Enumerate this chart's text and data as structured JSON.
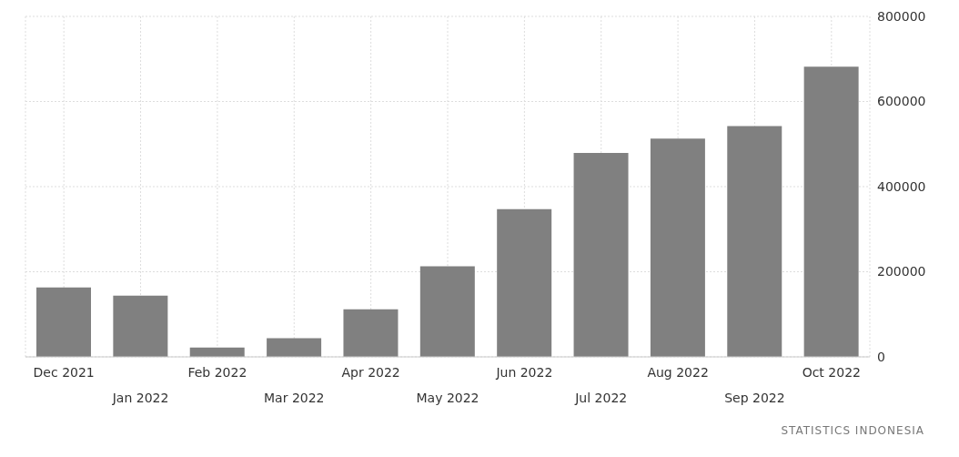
{
  "chart_data": {
    "type": "bar",
    "categories": [
      "Dec 2021",
      "Jan 2022",
      "Feb 2022",
      "Mar 2022",
      "Apr 2022",
      "May 2022",
      "Jun 2022",
      "Jul 2022",
      "Aug 2022",
      "Sep 2022",
      "Oct 2022"
    ],
    "values": [
      163000,
      144000,
      22000,
      44000,
      112000,
      213000,
      347000,
      479000,
      513000,
      542000,
      682000
    ],
    "color": "#808080",
    "ylim": [
      0,
      800000
    ],
    "yticks": [
      0,
      200000,
      400000,
      600000,
      800000
    ],
    "grid": true,
    "annotations": [
      "STATISTICS INDONESIA"
    ]
  }
}
